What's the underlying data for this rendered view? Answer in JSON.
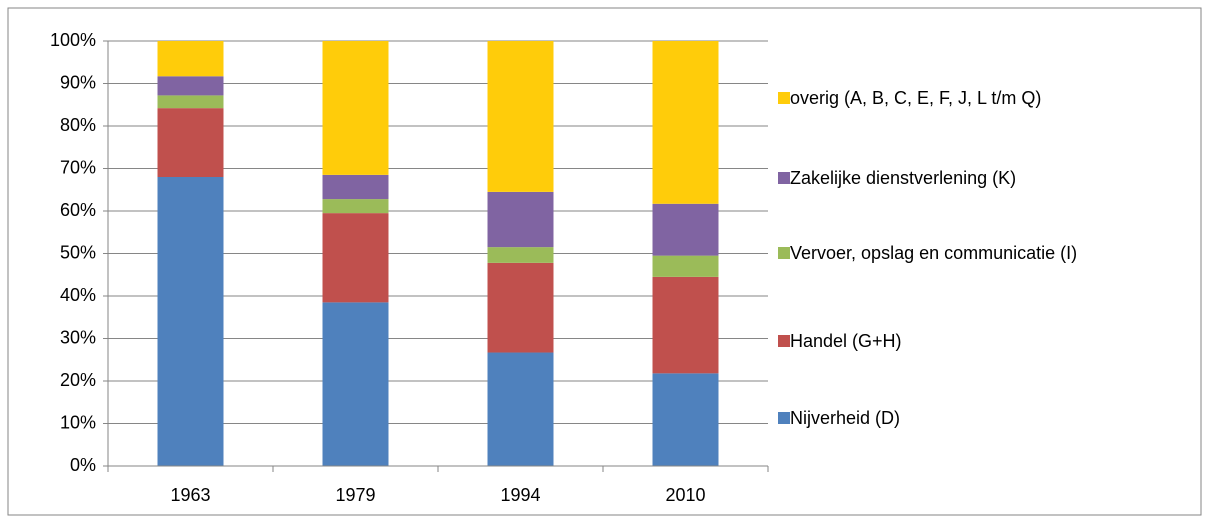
{
  "chart_data": {
    "type": "stacked_bar",
    "categories": [
      "1963",
      "1979",
      "1994",
      "2010"
    ],
    "series": [
      {
        "name": "Nijverheid (D)",
        "color": "#4f81bd",
        "values": [
          68,
          38.5,
          26.7,
          21.8
        ]
      },
      {
        "name": "Handel (G+H)",
        "color": "#c0504d",
        "values": [
          16.2,
          21,
          21.1,
          22.7
        ]
      },
      {
        "name": "Vervoer, opslag en communicatie (I)",
        "color": "#9bbb59",
        "values": [
          3,
          3.3,
          3.7,
          5
        ]
      },
      {
        "name": "Zakelijke dienstverlening (K)",
        "color": "#8064a2",
        "values": [
          4.5,
          5.7,
          13,
          12.2
        ]
      },
      {
        "name": "overig (A, B, C, E, F, J, L t/m Q)",
        "color": "#ffcc0a",
        "values": [
          8.3,
          31.5,
          35.5,
          38.3
        ]
      }
    ],
    "ylim": [
      0,
      100
    ],
    "yticks": [
      {
        "value": 0,
        "label": "0%"
      },
      {
        "value": 10,
        "label": "10%"
      },
      {
        "value": 20,
        "label": "20%"
      },
      {
        "value": 30,
        "label": "30%"
      },
      {
        "value": 40,
        "label": "40%"
      },
      {
        "value": 50,
        "label": "50%"
      },
      {
        "value": 60,
        "label": "60%"
      },
      {
        "value": 70,
        "label": "70%"
      },
      {
        "value": 80,
        "label": "80%"
      },
      {
        "value": 90,
        "label": "90%"
      },
      {
        "value": 100,
        "label": "100%"
      }
    ],
    "grid": true,
    "legend": "right"
  }
}
